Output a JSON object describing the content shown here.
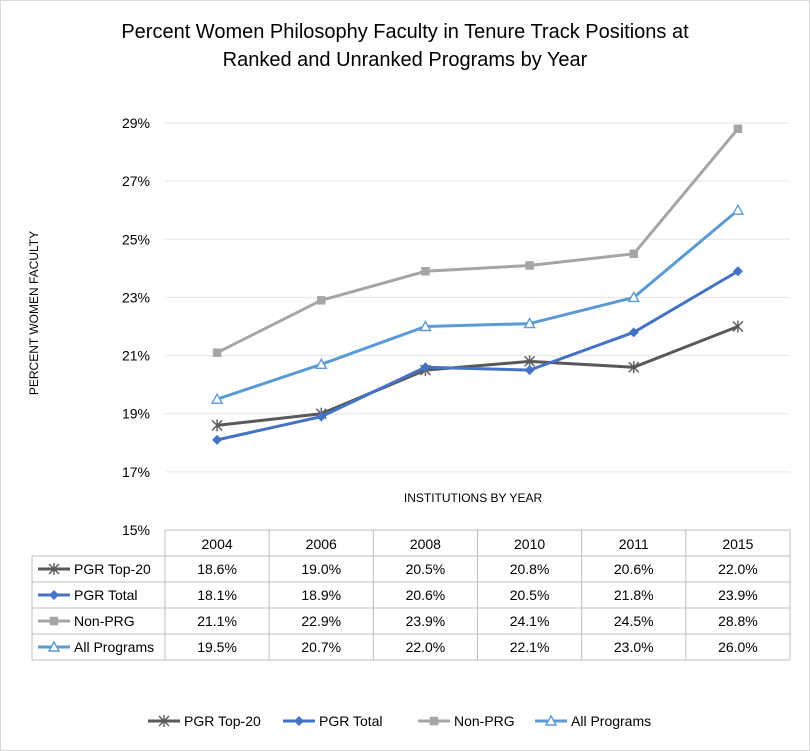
{
  "chart_data": {
    "type": "line",
    "title_lines": [
      "Percent Women Philosophy Faculty in Tenure Track Positions at",
      "Ranked and Unranked Programs by Year"
    ],
    "xlabel": "INSTITUTIONS BY YEAR",
    "ylabel": "PERCENT WOMEN FACULTY",
    "ylim": [
      15,
      29
    ],
    "yticks": [
      15,
      17,
      19,
      21,
      23,
      25,
      27,
      29
    ],
    "ytick_labels": [
      "15%",
      "17%",
      "19%",
      "21%",
      "23%",
      "25%",
      "27%",
      "29%"
    ],
    "grid": true,
    "legend_position": "bottom",
    "categories": [
      "2004",
      "2006",
      "2008",
      "2010",
      "2011",
      "2015"
    ],
    "series": [
      {
        "name": "PGR Top-20",
        "color": "#595959",
        "marker": "asterisk",
        "values": [
          18.6,
          19.0,
          20.5,
          20.8,
          20.6,
          22.0
        ],
        "labels": [
          "18.6%",
          "19.0%",
          "20.5%",
          "20.8%",
          "20.6%",
          "22.0%"
        ]
      },
      {
        "name": "PGR Total",
        "color": "#4472c4",
        "marker": "diamond",
        "values": [
          18.1,
          18.9,
          20.6,
          20.5,
          21.8,
          23.9
        ],
        "labels": [
          "18.1%",
          "18.9%",
          "20.6%",
          "20.5%",
          "21.8%",
          "23.9%"
        ]
      },
      {
        "name": "Non-PRG",
        "color": "#a5a5a5",
        "marker": "square",
        "values": [
          21.1,
          22.9,
          23.9,
          24.1,
          24.5,
          28.8
        ],
        "labels": [
          "21.1%",
          "22.9%",
          "23.9%",
          "24.1%",
          "24.5%",
          "28.8%"
        ]
      },
      {
        "name": "All Programs",
        "color": "#5b9bd5",
        "marker": "triangle",
        "values": [
          19.5,
          20.7,
          22.0,
          22.1,
          23.0,
          26.0
        ],
        "labels": [
          "19.5%",
          "20.7%",
          "22.0%",
          "22.1%",
          "23.0%",
          "26.0%"
        ]
      }
    ]
  }
}
